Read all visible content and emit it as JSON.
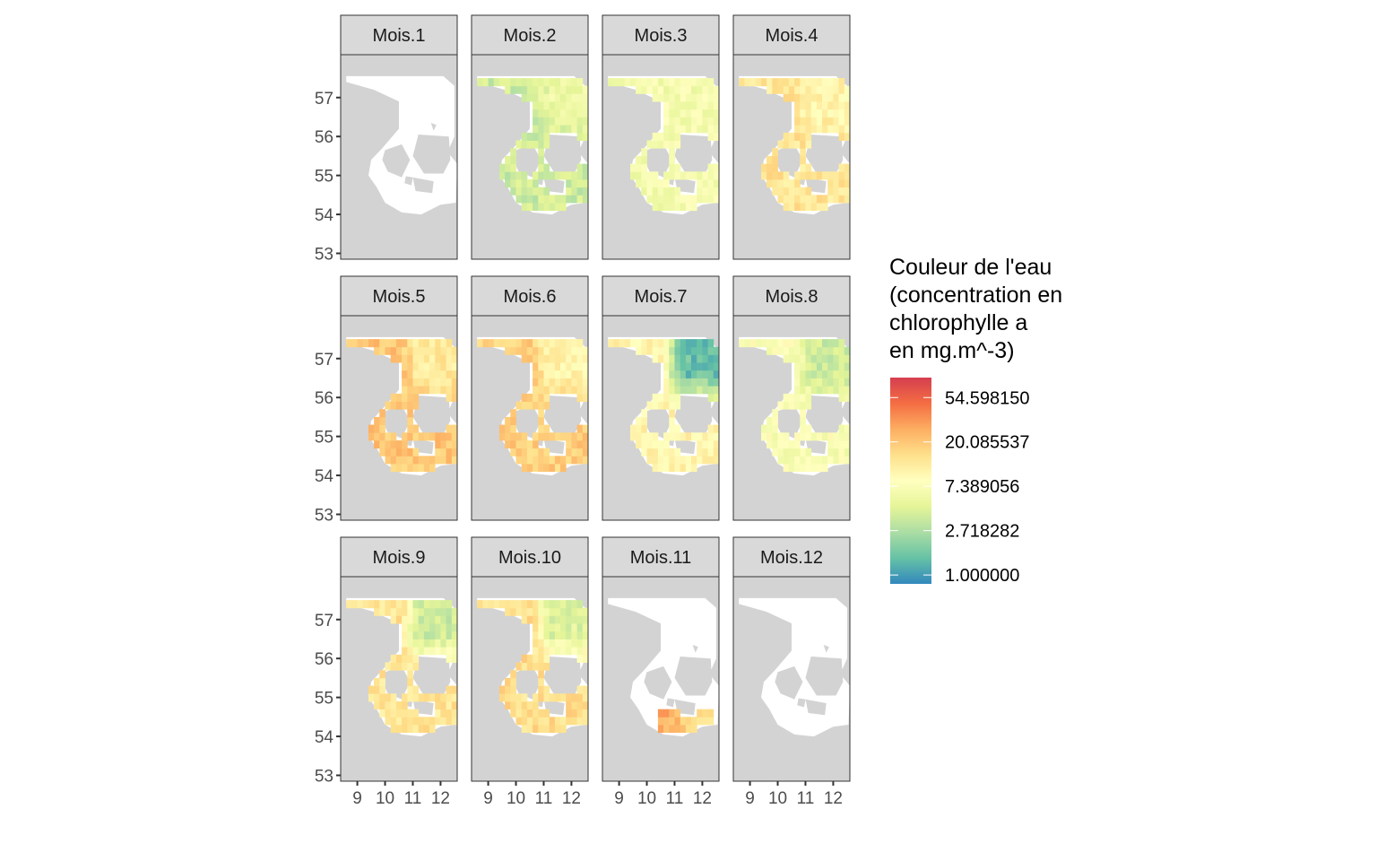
{
  "chart_data": {
    "type": "heatmap",
    "title": "",
    "facet_labels": [
      "Mois.1",
      "Mois.2",
      "Mois.3",
      "Mois.4",
      "Mois.5",
      "Mois.6",
      "Mois.7",
      "Mois.8",
      "Mois.9",
      "Mois.10",
      "Mois.11",
      "Mois.12"
    ],
    "x_ticks": [
      "9",
      "10",
      "11",
      "12"
    ],
    "x_tick_values": [
      9,
      10,
      11,
      12
    ],
    "y_ticks": [
      "57",
      "56",
      "55",
      "54",
      "53"
    ],
    "y_tick_values": [
      57,
      56,
      55,
      54,
      53
    ],
    "xlim": [
      8.4,
      12.6
    ],
    "ylim": [
      52.85,
      58.1
    ],
    "legend": {
      "title_lines": [
        "Couleur de l'eau",
        "(concentration en",
        "chlorophylle a",
        "en mg.m^-3)"
      ],
      "labels": [
        "54.598150",
        "20.085537",
        "7.389056",
        "2.718282",
        "1.000000"
      ],
      "log_values": [
        4,
        3,
        2,
        1,
        0
      ],
      "log_range": [
        -0.2,
        4.45
      ],
      "colors": [
        "#3288bd",
        "#66c2a5",
        "#abdda4",
        "#e6f598",
        "#ffffbf",
        "#fee08b",
        "#fdae61",
        "#f46d43",
        "#d53e4f"
      ],
      "placement": "right"
    },
    "monthly_mean_log_chl": [
      null,
      1.5,
      1.9,
      2.3,
      2.6,
      2.5,
      1.0,
      1.6,
      1.8,
      1.9,
      3.0,
      null
    ],
    "monthly_coverage": [
      "none",
      "partial",
      "partial",
      "partial",
      "full",
      "full",
      "full",
      "full",
      "full",
      "full",
      "small",
      "none"
    ],
    "colors": {
      "land": "#d3d3d3",
      "water": "#ffffff",
      "strip": "#d9d9d9",
      "border": "#333333"
    }
  }
}
